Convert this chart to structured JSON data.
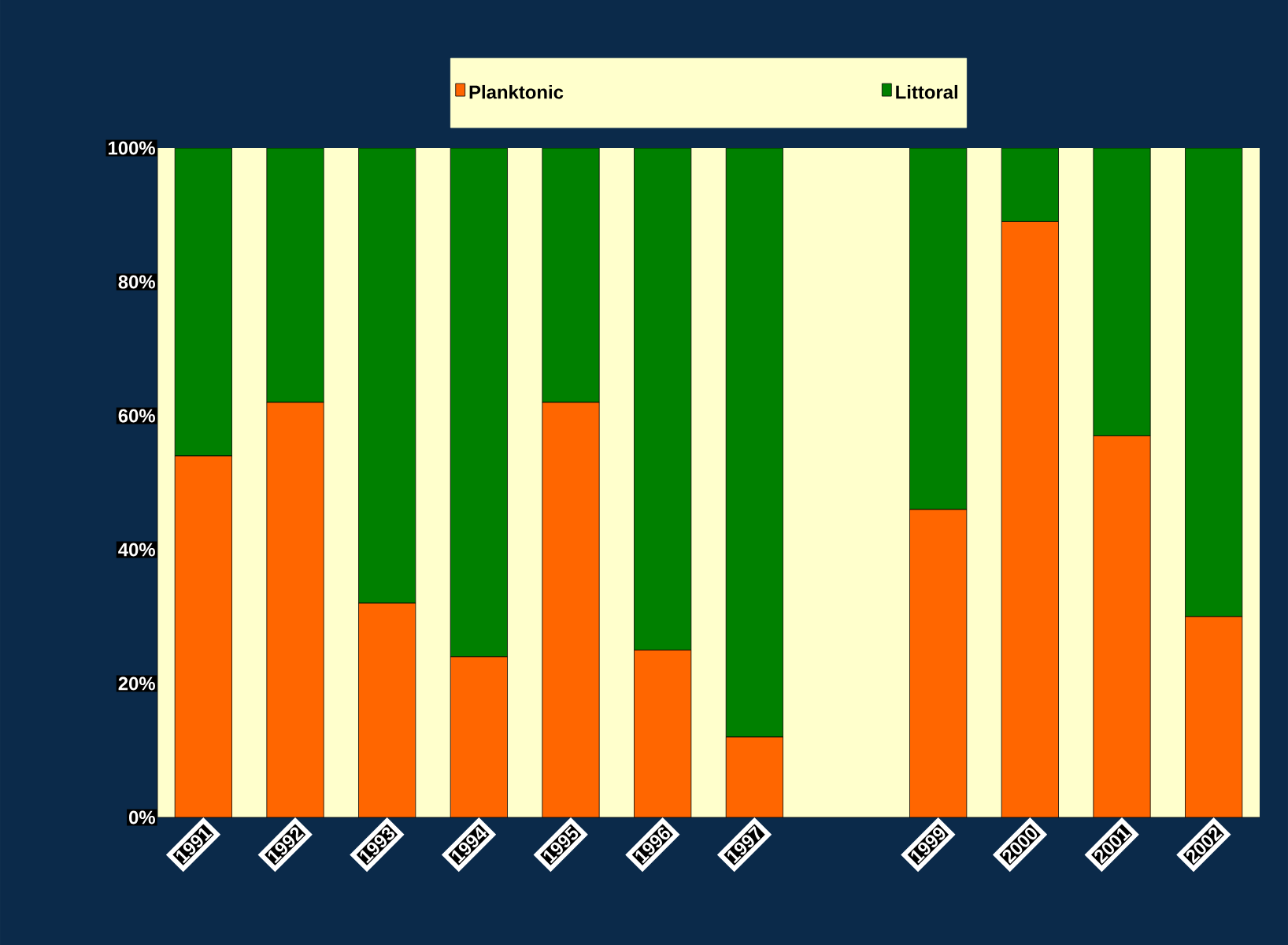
{
  "chart_data": {
    "type": "bar",
    "stacked": true,
    "legend": "top",
    "categories": [
      "1991",
      "1992",
      "1993",
      "1994",
      "1995",
      "1996",
      "1997",
      null,
      "1999",
      "2000",
      "2001",
      "2002"
    ],
    "series": [
      {
        "name": "Planktonic",
        "color": "#ff6600",
        "values": [
          54,
          62,
          32,
          24,
          62,
          25,
          12,
          null,
          46,
          89,
          57,
          30
        ]
      },
      {
        "name": "Littoral",
        "color": "#008000",
        "values": [
          46,
          38,
          68,
          76,
          38,
          75,
          88,
          null,
          54,
          11,
          43,
          70
        ]
      }
    ],
    "ylim": [
      0,
      100
    ],
    "yticks": [
      {
        "value": 0,
        "label": "0%"
      },
      {
        "value": 20,
        "label": "20%"
      },
      {
        "value": 40,
        "label": "40%"
      },
      {
        "value": 60,
        "label": "60%"
      },
      {
        "value": 80,
        "label": "80%"
      },
      {
        "value": 100,
        "label": "100%"
      }
    ]
  }
}
